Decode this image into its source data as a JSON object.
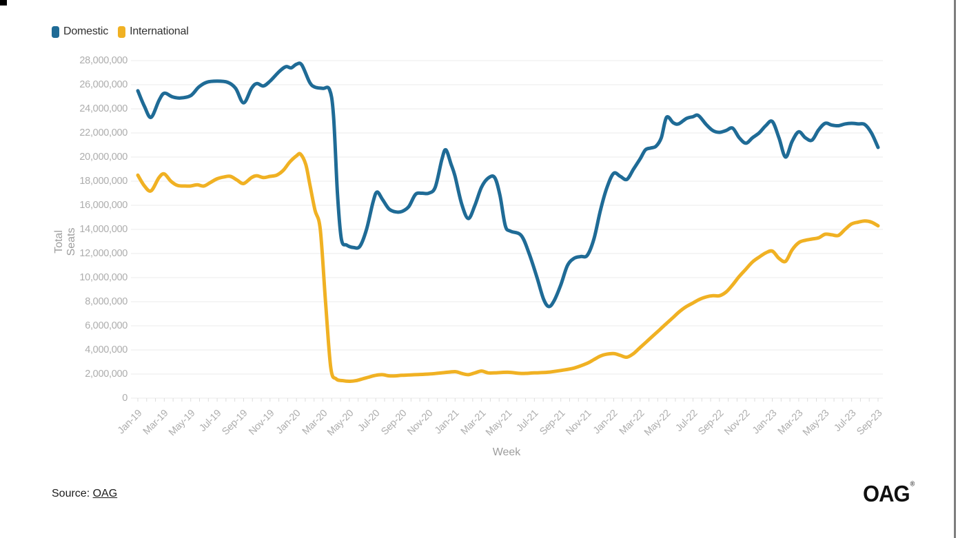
{
  "page": {
    "background": "#ffffff"
  },
  "legend": {
    "position": "top-left",
    "items": [
      {
        "label": "Domestic",
        "color": "#1F6B96"
      },
      {
        "label": "International",
        "color": "#F0B123"
      }
    ]
  },
  "chart_data": {
    "type": "line",
    "title": "",
    "xlabel": "Week",
    "ylabel": "Total Seats",
    "grid": "horizontal",
    "legend_position": "top-left",
    "ylim": [
      0,
      28000000
    ],
    "y_ticks": [
      0,
      2000000,
      4000000,
      6000000,
      8000000,
      10000000,
      12000000,
      14000000,
      16000000,
      18000000,
      20000000,
      22000000,
      24000000,
      26000000,
      28000000
    ],
    "x_unit": "months since Jan-19",
    "x_tick_positions": [
      0,
      2,
      4,
      6,
      8,
      10,
      12,
      14,
      16,
      18,
      20,
      22,
      24,
      26,
      28,
      30,
      32,
      34,
      36,
      38,
      40,
      42,
      44,
      46,
      48,
      50,
      52,
      54,
      56
    ],
    "x_tick_labels": [
      "Jan-19",
      "Mar-19",
      "May-19",
      "Jul-19",
      "Sep-19",
      "Nov-19",
      "Jan-20",
      "Mar-20",
      "May-20",
      "Jul-20",
      "Sep-20",
      "Nov-20",
      "Jan-21",
      "Mar-21",
      "May-21",
      "Jul-21",
      "Sep-21",
      "Nov-21",
      "Jan-22",
      "Mar-22",
      "May-22",
      "Jul-22",
      "Sep-22",
      "Nov-22",
      "Jan-23",
      "Mar-23",
      "May-23",
      "Jul-23",
      "Sep-23"
    ],
    "x_tick_rotation": 45,
    "series": [
      {
        "name": "Domestic",
        "color": "#1F6B96",
        "points": [
          [
            0,
            25500000
          ],
          [
            0.5,
            24200000
          ],
          [
            1,
            23300000
          ],
          [
            1.6,
            24700000
          ],
          [
            2,
            25300000
          ],
          [
            2.6,
            25000000
          ],
          [
            3.2,
            24900000
          ],
          [
            4,
            25100000
          ],
          [
            4.6,
            25800000
          ],
          [
            5.2,
            26200000
          ],
          [
            6,
            26300000
          ],
          [
            6.8,
            26200000
          ],
          [
            7.4,
            25700000
          ],
          [
            8,
            24500000
          ],
          [
            8.6,
            25700000
          ],
          [
            9,
            26100000
          ],
          [
            9.5,
            25900000
          ],
          [
            10,
            26300000
          ],
          [
            10.7,
            27100000
          ],
          [
            11.2,
            27500000
          ],
          [
            11.6,
            27400000
          ],
          [
            12,
            27700000
          ],
          [
            12.4,
            27650000
          ],
          [
            13,
            26200000
          ],
          [
            13.4,
            25800000
          ],
          [
            14,
            25700000
          ],
          [
            14.5,
            25600000
          ],
          [
            14.8,
            23500000
          ],
          [
            15.1,
            17000000
          ],
          [
            15.4,
            13200000
          ],
          [
            15.8,
            12700000
          ],
          [
            16.3,
            12500000
          ],
          [
            16.8,
            12600000
          ],
          [
            17.3,
            14000000
          ],
          [
            17.8,
            16300000
          ],
          [
            18.1,
            17100000
          ],
          [
            18.5,
            16500000
          ],
          [
            19,
            15700000
          ],
          [
            19.5,
            15450000
          ],
          [
            20,
            15500000
          ],
          [
            20.5,
            15900000
          ],
          [
            21,
            16900000
          ],
          [
            21.5,
            17000000
          ],
          [
            22,
            17000000
          ],
          [
            22.5,
            17500000
          ],
          [
            23,
            19800000
          ],
          [
            23.3,
            20600000
          ],
          [
            23.7,
            19400000
          ],
          [
            24,
            18400000
          ],
          [
            24.5,
            16100000
          ],
          [
            25,
            14900000
          ],
          [
            25.5,
            16000000
          ],
          [
            26,
            17500000
          ],
          [
            26.5,
            18250000
          ],
          [
            27,
            18300000
          ],
          [
            27.4,
            16800000
          ],
          [
            27.8,
            14300000
          ],
          [
            28.2,
            13850000
          ],
          [
            29,
            13500000
          ],
          [
            29.6,
            12000000
          ],
          [
            30.2,
            10000000
          ],
          [
            30.7,
            8200000
          ],
          [
            31.1,
            7600000
          ],
          [
            31.5,
            8100000
          ],
          [
            32,
            9400000
          ],
          [
            32.5,
            11000000
          ],
          [
            33,
            11600000
          ],
          [
            33.5,
            11750000
          ],
          [
            34,
            11850000
          ],
          [
            34.5,
            13200000
          ],
          [
            35,
            15600000
          ],
          [
            35.5,
            17500000
          ],
          [
            36,
            18650000
          ],
          [
            36.5,
            18400000
          ],
          [
            37,
            18150000
          ],
          [
            37.5,
            19000000
          ],
          [
            38,
            19850000
          ],
          [
            38.4,
            20600000
          ],
          [
            38.8,
            20750000
          ],
          [
            39.2,
            20900000
          ],
          [
            39.6,
            21600000
          ],
          [
            40,
            23300000
          ],
          [
            40.5,
            22850000
          ],
          [
            40.9,
            22750000
          ],
          [
            41.5,
            23200000
          ],
          [
            42,
            23350000
          ],
          [
            42.4,
            23450000
          ],
          [
            43,
            22700000
          ],
          [
            43.5,
            22200000
          ],
          [
            44,
            22050000
          ],
          [
            44.5,
            22200000
          ],
          [
            45,
            22400000
          ],
          [
            45.5,
            21600000
          ],
          [
            46,
            21150000
          ],
          [
            46.5,
            21600000
          ],
          [
            47,
            22000000
          ],
          [
            47.5,
            22600000
          ],
          [
            48,
            22950000
          ],
          [
            48.5,
            21600000
          ],
          [
            49,
            20000000
          ],
          [
            49.5,
            21300000
          ],
          [
            50,
            22100000
          ],
          [
            50.5,
            21600000
          ],
          [
            51,
            21400000
          ],
          [
            51.5,
            22250000
          ],
          [
            52,
            22800000
          ],
          [
            52.5,
            22650000
          ],
          [
            53,
            22600000
          ],
          [
            53.5,
            22750000
          ],
          [
            54,
            22800000
          ],
          [
            54.5,
            22750000
          ],
          [
            55,
            22700000
          ],
          [
            55.5,
            22000000
          ],
          [
            56,
            20800000
          ]
        ]
      },
      {
        "name": "International",
        "color": "#F0B123",
        "points": [
          [
            0,
            18500000
          ],
          [
            0.5,
            17600000
          ],
          [
            1,
            17200000
          ],
          [
            1.6,
            18300000
          ],
          [
            2,
            18600000
          ],
          [
            2.5,
            18000000
          ],
          [
            3,
            17650000
          ],
          [
            3.6,
            17600000
          ],
          [
            4,
            17600000
          ],
          [
            4.5,
            17700000
          ],
          [
            5,
            17600000
          ],
          [
            5.5,
            17900000
          ],
          [
            6,
            18200000
          ],
          [
            6.5,
            18350000
          ],
          [
            7,
            18400000
          ],
          [
            7.5,
            18100000
          ],
          [
            8,
            17800000
          ],
          [
            8.6,
            18300000
          ],
          [
            9,
            18450000
          ],
          [
            9.5,
            18300000
          ],
          [
            10,
            18400000
          ],
          [
            10.5,
            18500000
          ],
          [
            11,
            18900000
          ],
          [
            11.5,
            19600000
          ],
          [
            12,
            20100000
          ],
          [
            12.3,
            20250000
          ],
          [
            12.7,
            19400000
          ],
          [
            13,
            17800000
          ],
          [
            13.4,
            15600000
          ],
          [
            13.8,
            14000000
          ],
          [
            14.2,
            8000000
          ],
          [
            14.6,
            2500000
          ],
          [
            15,
            1600000
          ],
          [
            15.5,
            1450000
          ],
          [
            16,
            1400000
          ],
          [
            16.5,
            1450000
          ],
          [
            17,
            1600000
          ],
          [
            17.5,
            1750000
          ],
          [
            18,
            1900000
          ],
          [
            18.5,
            1950000
          ],
          [
            19,
            1850000
          ],
          [
            19.5,
            1850000
          ],
          [
            20,
            1900000
          ],
          [
            21,
            1950000
          ],
          [
            22,
            2000000
          ],
          [
            23,
            2100000
          ],
          [
            24,
            2200000
          ],
          [
            24.5,
            2050000
          ],
          [
            25,
            1950000
          ],
          [
            25.5,
            2100000
          ],
          [
            26,
            2250000
          ],
          [
            26.5,
            2100000
          ],
          [
            27,
            2100000
          ],
          [
            28,
            2150000
          ],
          [
            29,
            2050000
          ],
          [
            30,
            2100000
          ],
          [
            31,
            2150000
          ],
          [
            32,
            2300000
          ],
          [
            33,
            2500000
          ],
          [
            34,
            2900000
          ],
          [
            34.5,
            3200000
          ],
          [
            35,
            3500000
          ],
          [
            35.5,
            3650000
          ],
          [
            36,
            3700000
          ],
          [
            36.5,
            3550000
          ],
          [
            37,
            3400000
          ],
          [
            37.5,
            3700000
          ],
          [
            38,
            4200000
          ],
          [
            38.5,
            4700000
          ],
          [
            39,
            5200000
          ],
          [
            39.5,
            5700000
          ],
          [
            40,
            6200000
          ],
          [
            40.5,
            6700000
          ],
          [
            41,
            7200000
          ],
          [
            41.5,
            7600000
          ],
          [
            42,
            7900000
          ],
          [
            42.5,
            8200000
          ],
          [
            43,
            8400000
          ],
          [
            43.5,
            8500000
          ],
          [
            44,
            8500000
          ],
          [
            44.5,
            8800000
          ],
          [
            45,
            9400000
          ],
          [
            45.5,
            10100000
          ],
          [
            46,
            10700000
          ],
          [
            46.5,
            11300000
          ],
          [
            47,
            11700000
          ],
          [
            47.5,
            12050000
          ],
          [
            48,
            12200000
          ],
          [
            48.5,
            11600000
          ],
          [
            49,
            11350000
          ],
          [
            49.5,
            12300000
          ],
          [
            50,
            12900000
          ],
          [
            50.5,
            13100000
          ],
          [
            51,
            13200000
          ],
          [
            51.5,
            13300000
          ],
          [
            52,
            13600000
          ],
          [
            52.5,
            13550000
          ],
          [
            53,
            13500000
          ],
          [
            53.5,
            14000000
          ],
          [
            54,
            14450000
          ],
          [
            54.5,
            14600000
          ],
          [
            55,
            14700000
          ],
          [
            55.5,
            14600000
          ],
          [
            56,
            14300000
          ]
        ]
      }
    ]
  },
  "styles": {
    "grid_color": "#ebebeb",
    "tick_color": "#dcdcdc",
    "line_width": 5
  },
  "source": {
    "prefix": "Source: ",
    "link": "OAG"
  },
  "logo": {
    "text": "OAG",
    "mark": "®"
  }
}
